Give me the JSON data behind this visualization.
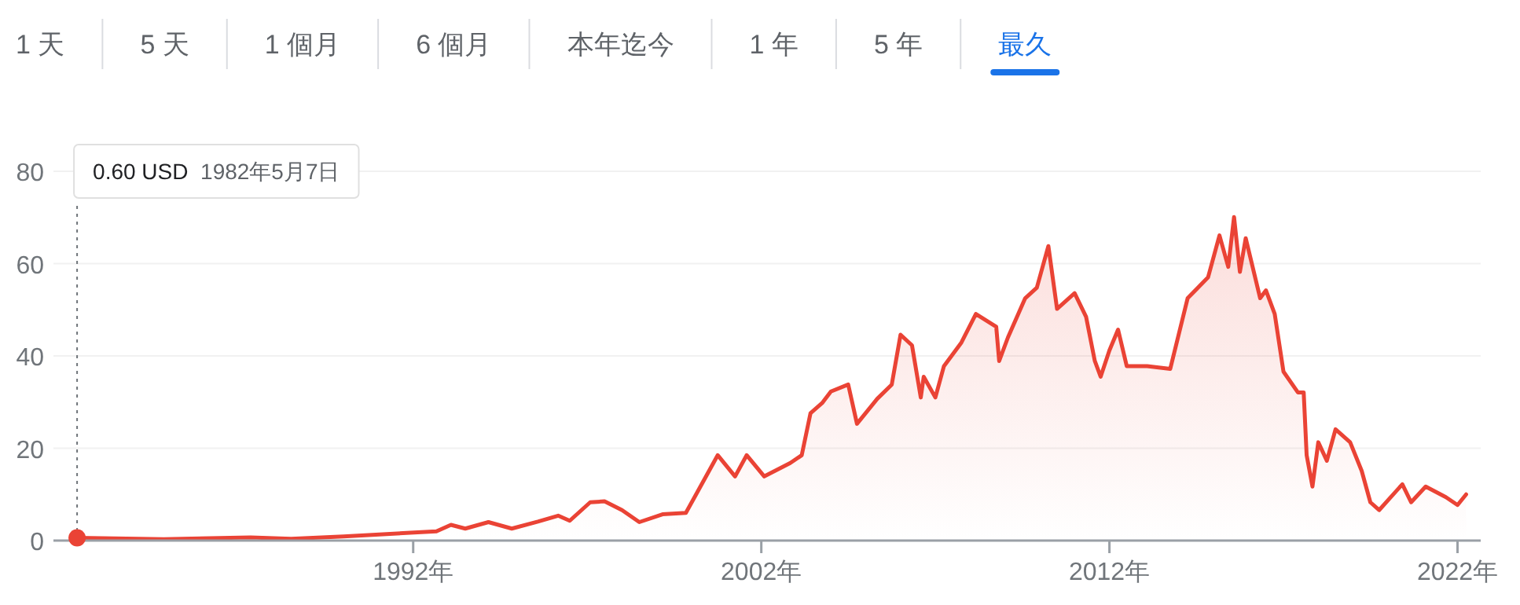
{
  "chart_data": {
    "type": "area",
    "grid": "y",
    "xlim": [
      "1981-09",
      "2022-09"
    ],
    "ylim": [
      0,
      80
    ],
    "xticks": [
      {
        "value": "1992-01-01",
        "label": "1992年"
      },
      {
        "value": "2002-01-01",
        "label": "2002年"
      },
      {
        "value": "2012-01-01",
        "label": "2012年"
      },
      {
        "value": "2022-01-01",
        "label": "2022年"
      }
    ],
    "yticks": [
      0,
      20,
      40,
      60,
      80
    ],
    "annotations": [
      {
        "text": "0.60 USD  1982年5月7日",
        "x": "1982-05-07",
        "y": 0.6
      },
      "1 天",
      "5 天",
      "1 個月",
      "6 個月",
      "本年迄今",
      "1 年",
      "5 年",
      "最久"
    ],
    "x": [
      "1982-05-07",
      "1984-11",
      "1987-05",
      "1988-07",
      "1990-01",
      "1991-12",
      "1992-09",
      "1993-02",
      "1993-07",
      "1994-03",
      "1994-11",
      "1995-08",
      "1996-03",
      "1996-07",
      "1997-02",
      "1997-07",
      "1998-01",
      "1998-07",
      "1999-03",
      "1999-11",
      "2000-03",
      "2000-10",
      "2001-04",
      "2001-08",
      "2002-02",
      "2002-11",
      "2003-03",
      "2003-06",
      "2003-10",
      "2004-01",
      "2004-07",
      "2004-10",
      "2005-05",
      "2005-10",
      "2006-01",
      "2006-05",
      "2006-08",
      "2006-09",
      "2007-01",
      "2007-04",
      "2007-10",
      "2008-03",
      "2008-10",
      "2008-11",
      "2009-02",
      "2009-08",
      "2009-12",
      "2010-04",
      "2010-07",
      "2011-01",
      "2011-05",
      "2011-08",
      "2011-10",
      "2012-01",
      "2012-04",
      "2012-07",
      "2013-02",
      "2013-10",
      "2014-04",
      "2014-11",
      "2015-03",
      "2015-06",
      "2015-08",
      "2015-10",
      "2015-12",
      "2016-05",
      "2016-07",
      "2016-10",
      "2017-01",
      "2017-06",
      "2017-08",
      "2017-09",
      "2017-11",
      "2018-01",
      "2018-04",
      "2018-07",
      "2018-12",
      "2019-04",
      "2019-07",
      "2019-10",
      "2020-06",
      "2020-09",
      "2021-02",
      "2021-09",
      "2022-01",
      "2022-04"
    ],
    "series": [
      {
        "color": "#ea4335",
        "values": [
          0.6,
          0.3,
          0.7,
          0.4,
          0.9,
          1.7,
          2.0,
          3.4,
          2.6,
          4.0,
          2.6,
          4.1,
          5.4,
          4.3,
          8.3,
          8.5,
          6.6,
          4.0,
          5.7,
          6.0,
          10.5,
          18.5,
          13.9,
          18.5,
          13.9,
          16.8,
          18.5,
          27.6,
          29.8,
          32.3,
          33.8,
          25.3,
          30.7,
          33.8,
          44.6,
          42.3,
          31.0,
          35.5,
          31.0,
          37.8,
          42.9,
          49.1,
          46.3,
          38.9,
          44.0,
          52.5,
          54.8,
          63.8,
          50.2,
          53.6,
          48.5,
          38.9,
          35.5,
          41.2,
          45.7,
          37.8,
          37.8,
          37.2,
          52.5,
          57.0,
          66.1,
          59.3,
          70.1,
          58.2,
          65.5,
          52.5,
          54.2,
          49.1,
          36.6,
          32.1,
          32.1,
          18.5,
          11.7,
          21.3,
          17.3,
          24.1,
          21.3,
          15.1,
          8.3,
          6.6,
          12.2,
          8.3,
          11.7,
          9.4,
          7.7,
          10.0
        ]
      }
    ]
  }
}
